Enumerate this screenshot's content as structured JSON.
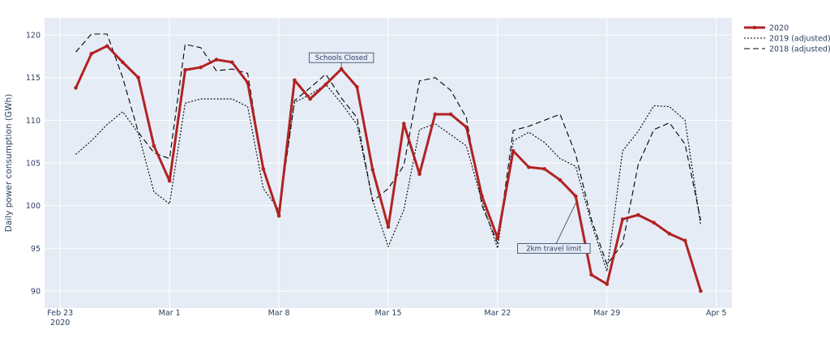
{
  "chart_data": {
    "type": "line",
    "ylabel": "Daily power consumption (GWh)",
    "xlabel": "",
    "ylim": [
      88,
      122
    ],
    "xlim": [
      "2020-02-22",
      "2020-04-06"
    ],
    "grid": true,
    "legend_position": "right",
    "plot_background": "#e5ecf6",
    "x_ticks": [
      {
        "date": "2020-02-23",
        "label": "Feb 23",
        "sublabel": "2020"
      },
      {
        "date": "2020-03-01",
        "label": "Mar 1",
        "sublabel": ""
      },
      {
        "date": "2020-03-08",
        "label": "Mar 8",
        "sublabel": ""
      },
      {
        "date": "2020-03-15",
        "label": "Mar 15",
        "sublabel": ""
      },
      {
        "date": "2020-03-22",
        "label": "Mar 22",
        "sublabel": ""
      },
      {
        "date": "2020-03-29",
        "label": "Mar 29",
        "sublabel": ""
      },
      {
        "date": "2020-04-05",
        "label": "Apr 5",
        "sublabel": ""
      }
    ],
    "y_ticks": [
      90,
      95,
      100,
      105,
      110,
      115,
      120
    ],
    "x": [
      "2020-02-24",
      "2020-02-25",
      "2020-02-26",
      "2020-02-27",
      "2020-02-28",
      "2020-02-29",
      "2020-03-01",
      "2020-03-02",
      "2020-03-03",
      "2020-03-04",
      "2020-03-05",
      "2020-03-06",
      "2020-03-07",
      "2020-03-08",
      "2020-03-09",
      "2020-03-10",
      "2020-03-11",
      "2020-03-12",
      "2020-03-13",
      "2020-03-14",
      "2020-03-15",
      "2020-03-16",
      "2020-03-17",
      "2020-03-18",
      "2020-03-19",
      "2020-03-20",
      "2020-03-21",
      "2020-03-22",
      "2020-03-23",
      "2020-03-24",
      "2020-03-25",
      "2020-03-26",
      "2020-03-27",
      "2020-03-28",
      "2020-03-29",
      "2020-03-30",
      "2020-03-31",
      "2020-04-01",
      "2020-04-02",
      "2020-04-03",
      "2020-04-04"
    ],
    "series": [
      {
        "name": "2020",
        "color": "#b22222",
        "dash": "solid",
        "markers": true,
        "values": [
          113.8,
          117.8,
          118.7,
          116.8,
          115.0,
          107.0,
          102.9,
          115.9,
          116.2,
          117.1,
          116.8,
          114.4,
          104.3,
          98.8,
          114.7,
          112.5,
          114.2,
          116.0,
          113.9,
          104.2,
          97.5,
          109.6,
          103.7,
          110.7,
          110.7,
          109.2,
          101.1,
          96.2,
          106.4,
          104.5,
          104.3,
          103.0,
          101.1,
          91.9,
          90.8,
          98.4,
          98.9,
          98.0,
          96.7,
          95.9,
          90.0
        ]
      },
      {
        "name": "2019 (adjusted)",
        "color": "#000000",
        "dash": "dot",
        "markers": false,
        "values": [
          106.0,
          107.6,
          109.5,
          111.0,
          108.5,
          101.6,
          100.2,
          112.0,
          112.5,
          112.5,
          112.5,
          111.6,
          102.0,
          99.5,
          112.1,
          113.0,
          114.2,
          112.0,
          109.5,
          100.6,
          95.2,
          99.5,
          108.9,
          109.6,
          108.3,
          107.0,
          100.5,
          95.0,
          107.6,
          108.6,
          107.4,
          105.5,
          104.6,
          98.0,
          92.3,
          106.4,
          108.7,
          111.7,
          111.6,
          110.0,
          97.7
        ]
      },
      {
        "name": "2018 (adjusted)",
        "color": "#000000",
        "dash": "dash",
        "markers": false,
        "values": [
          118.0,
          120.1,
          120.1,
          115.0,
          108.6,
          106.2,
          105.5,
          118.9,
          118.5,
          115.8,
          116.0,
          115.5,
          104.2,
          99.0,
          112.3,
          113.8,
          115.4,
          112.6,
          110.3,
          100.5,
          102.0,
          104.7,
          114.6,
          115.0,
          113.5,
          110.3,
          100.0,
          95.6,
          108.8,
          109.3,
          110.0,
          110.7,
          106.0,
          98.4,
          93.1,
          95.5,
          104.8,
          108.9,
          109.7,
          107.2,
          98.3
        ]
      }
    ],
    "annotations": [
      {
        "text": "Schools Closed",
        "x": "2020-03-12",
        "y": 116.0
      },
      {
        "text": "2km travel limit",
        "x": "2020-03-27",
        "y": 100.1
      }
    ]
  }
}
